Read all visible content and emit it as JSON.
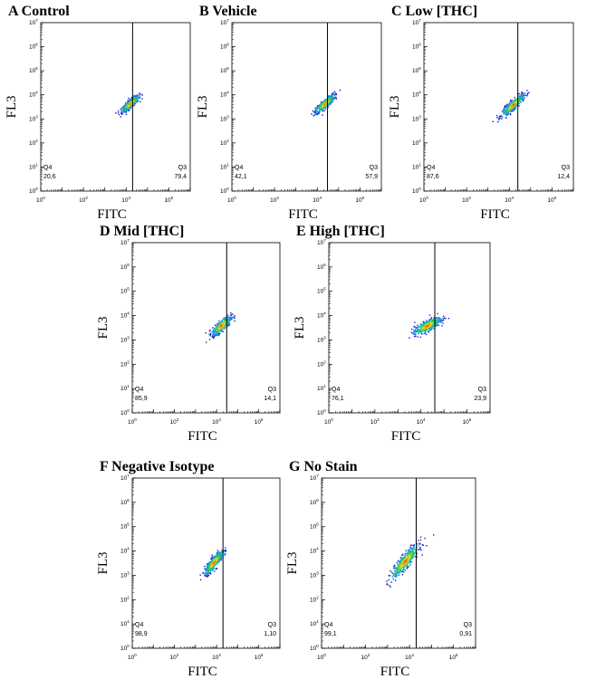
{
  "chart_data": [
    {
      "type": "scatter",
      "title": "A  Control",
      "xlabel": "FITC",
      "ylabel": "FL3",
      "xscale": "log",
      "yscale": "log",
      "xlim": [
        1,
        10000000
      ],
      "ylim": [
        1,
        10000000
      ],
      "x_ticks": [
        [
          "10",
          "0"
        ],
        [
          "10",
          "2"
        ],
        [
          "10",
          "4"
        ],
        [
          "10",
          "6"
        ]
      ],
      "y_ticks": [
        [
          "10",
          "0"
        ],
        [
          "10",
          "1"
        ],
        [
          "10",
          "2"
        ],
        [
          "10",
          "3"
        ],
        [
          "10",
          "4"
        ],
        [
          "10",
          "5"
        ],
        [
          "10",
          "6"
        ],
        [
          "10",
          "7"
        ]
      ],
      "gate_x": 20000,
      "population": {
        "center": [
          15000,
          4500
        ],
        "spread": [
          0.2,
          0.16
        ],
        "tilt": 0.7,
        "count": 480
      },
      "quadrants": [
        {
          "name": "Q4",
          "value": "20,6"
        },
        {
          "name": "Q3",
          "value": "79,4"
        }
      ]
    },
    {
      "type": "scatter",
      "title": "B  Vehicle",
      "xlabel": "FITC",
      "ylabel": "FL3",
      "xscale": "log",
      "yscale": "log",
      "xlim": [
        1,
        10000000
      ],
      "ylim": [
        1,
        10000000
      ],
      "x_ticks": [
        [
          "10",
          "0"
        ],
        [
          "10",
          "2"
        ],
        [
          "10",
          "4"
        ],
        [
          "10",
          "6"
        ]
      ],
      "y_ticks": [
        [
          "10",
          "0"
        ],
        [
          "10",
          "1"
        ],
        [
          "10",
          "2"
        ],
        [
          "10",
          "3"
        ],
        [
          "10",
          "4"
        ],
        [
          "10",
          "5"
        ],
        [
          "10",
          "6"
        ],
        [
          "10",
          "7"
        ]
      ],
      "gate_x": 30000,
      "population": {
        "center": [
          22000,
          4500
        ],
        "spread": [
          0.22,
          0.17
        ],
        "tilt": 0.7,
        "count": 480
      },
      "quadrants": [
        {
          "name": "Q4",
          "value": "42,1"
        },
        {
          "name": "Q3",
          "value": "57,9"
        }
      ]
    },
    {
      "type": "scatter",
      "title": "C  Low [THC]",
      "xlabel": "FITC",
      "ylabel": "FL3",
      "xscale": "log",
      "yscale": "log",
      "xlim": [
        1,
        10000000
      ],
      "ylim": [
        1,
        10000000
      ],
      "x_ticks": [
        [
          "10",
          "0"
        ],
        [
          "10",
          "2"
        ],
        [
          "10",
          "4"
        ],
        [
          "10",
          "6"
        ]
      ],
      "y_ticks": [
        [
          "10",
          "0"
        ],
        [
          "10",
          "1"
        ],
        [
          "10",
          "2"
        ],
        [
          "10",
          "3"
        ],
        [
          "10",
          "4"
        ],
        [
          "10",
          "5"
        ],
        [
          "10",
          "6"
        ],
        [
          "10",
          "7"
        ]
      ],
      "gate_x": 25000,
      "population": {
        "center": [
          14000,
          4000
        ],
        "spread": [
          0.25,
          0.18
        ],
        "tilt": 0.75,
        "count": 480
      },
      "quadrants": [
        {
          "name": "Q4",
          "value": "87,6"
        },
        {
          "name": "Q3",
          "value": "12,4"
        }
      ]
    },
    {
      "type": "scatter",
      "title": "D  Mid [THC]",
      "xlabel": "FITC",
      "ylabel": "FL3",
      "xscale": "log",
      "yscale": "log",
      "xlim": [
        1,
        10000000
      ],
      "ylim": [
        1,
        10000000
      ],
      "x_ticks": [
        [
          "10",
          "0"
        ],
        [
          "10",
          "2"
        ],
        [
          "10",
          "4"
        ],
        [
          "10",
          "6"
        ]
      ],
      "y_ticks": [
        [
          "10",
          "0"
        ],
        [
          "10",
          "1"
        ],
        [
          "10",
          "2"
        ],
        [
          "10",
          "3"
        ],
        [
          "10",
          "4"
        ],
        [
          "10",
          "5"
        ],
        [
          "10",
          "6"
        ],
        [
          "10",
          "7"
        ]
      ],
      "gate_x": 30000,
      "population": {
        "center": [
          16000,
          4000
        ],
        "spread": [
          0.22,
          0.2
        ],
        "tilt": 0.7,
        "count": 480
      },
      "quadrants": [
        {
          "name": "Q4",
          "value": "85,9"
        },
        {
          "name": "Q3",
          "value": "14,1"
        }
      ]
    },
    {
      "type": "scatter",
      "title": "E  High [THC]",
      "xlabel": "FITC",
      "ylabel": "FL3",
      "xscale": "log",
      "yscale": "log",
      "xlim": [
        1,
        10000000
      ],
      "ylim": [
        1,
        10000000
      ],
      "x_ticks": [
        [
          "10",
          "0"
        ],
        [
          "10",
          "2"
        ],
        [
          "10",
          "4"
        ],
        [
          "10",
          "6"
        ]
      ],
      "y_ticks": [
        [
          "10",
          "0"
        ],
        [
          "10",
          "1"
        ],
        [
          "10",
          "2"
        ],
        [
          "10",
          "3"
        ],
        [
          "10",
          "4"
        ],
        [
          "10",
          "5"
        ],
        [
          "10",
          "6"
        ],
        [
          "10",
          "7"
        ]
      ],
      "gate_x": 40000,
      "population": {
        "center": [
          18000,
          4000
        ],
        "spread": [
          0.28,
          0.2
        ],
        "tilt": 0.45,
        "count": 500
      },
      "quadrants": [
        {
          "name": "Q4",
          "value": "76,1"
        },
        {
          "name": "Q3",
          "value": "23,9"
        }
      ]
    },
    {
      "type": "scatter",
      "title": "F  Negative Isotype",
      "xlabel": "FITC",
      "ylabel": "FL3",
      "xscale": "log",
      "yscale": "log",
      "xlim": [
        1,
        10000000
      ],
      "ylim": [
        1,
        10000000
      ],
      "x_ticks": [
        [
          "10",
          "0"
        ],
        [
          "10",
          "2"
        ],
        [
          "10",
          "4"
        ],
        [
          "10",
          "6"
        ]
      ],
      "y_ticks": [
        [
          "10",
          "0"
        ],
        [
          "10",
          "1"
        ],
        [
          "10",
          "2"
        ],
        [
          "10",
          "3"
        ],
        [
          "10",
          "4"
        ],
        [
          "10",
          "5"
        ],
        [
          "10",
          "6"
        ],
        [
          "10",
          "7"
        ]
      ],
      "gate_x": 20000,
      "population": {
        "center": [
          7000,
          3500
        ],
        "spread": [
          0.22,
          0.22
        ],
        "tilt": 0.95,
        "count": 460
      },
      "quadrants": [
        {
          "name": "Q4",
          "value": "98,9"
        },
        {
          "name": "Q3",
          "value": "1,10"
        }
      ]
    },
    {
      "type": "scatter",
      "title": "G  No Stain",
      "xlabel": "FITC",
      "ylabel": "FL3",
      "xscale": "log",
      "yscale": "log",
      "xlim": [
        1,
        10000000
      ],
      "ylim": [
        1,
        10000000
      ],
      "x_ticks": [
        [
          "10",
          "0"
        ],
        [
          "10",
          "2"
        ],
        [
          "10",
          "4"
        ],
        [
          "10",
          "6"
        ]
      ],
      "y_ticks": [
        [
          "10",
          "0"
        ],
        [
          "10",
          "1"
        ],
        [
          "10",
          "2"
        ],
        [
          "10",
          "3"
        ],
        [
          "10",
          "4"
        ],
        [
          "10",
          "5"
        ],
        [
          "10",
          "6"
        ],
        [
          "10",
          "7"
        ]
      ],
      "gate_x": 20000,
      "population": {
        "center": [
          6000,
          4000
        ],
        "spread": [
          0.3,
          0.28
        ],
        "tilt": 0.95,
        "count": 520
      },
      "quadrants": [
        {
          "name": "Q4",
          "value": "99,1"
        },
        {
          "name": "Q3",
          "value": "0,91"
        }
      ]
    }
  ]
}
